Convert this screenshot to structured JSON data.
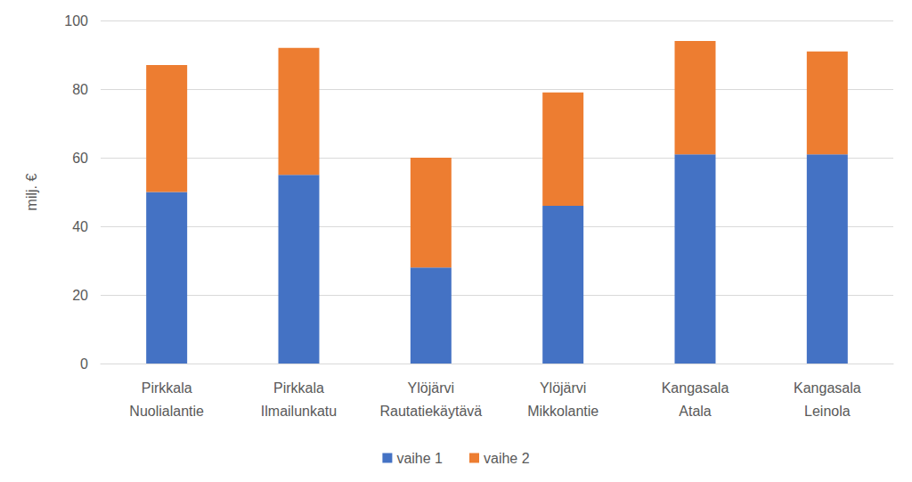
{
  "chart_data": {
    "type": "bar",
    "stacked": true,
    "categories": [
      "Pirkkala\nNuolialantie",
      "Pirkkala\nIlmailunkatu",
      "Ylöjärvi\nRautatiekäytävä",
      "Ylöjärvi\nMikkolantie",
      "Kangasala\nAtala",
      "Kangasala\nLeinola"
    ],
    "series": [
      {
        "name": "vaihe 1",
        "color": "#4472c4",
        "values": [
          50,
          55,
          28,
          46,
          61,
          61
        ]
      },
      {
        "name": "vaihe 2",
        "color": "#ed7d31",
        "values": [
          37,
          37,
          32,
          33,
          33,
          30
        ]
      }
    ],
    "y_label": "milj. €",
    "ylim": [
      0,
      100
    ],
    "yticks": [
      0,
      20,
      40,
      60,
      80,
      100
    ],
    "grid": true,
    "legend": "bottom"
  }
}
